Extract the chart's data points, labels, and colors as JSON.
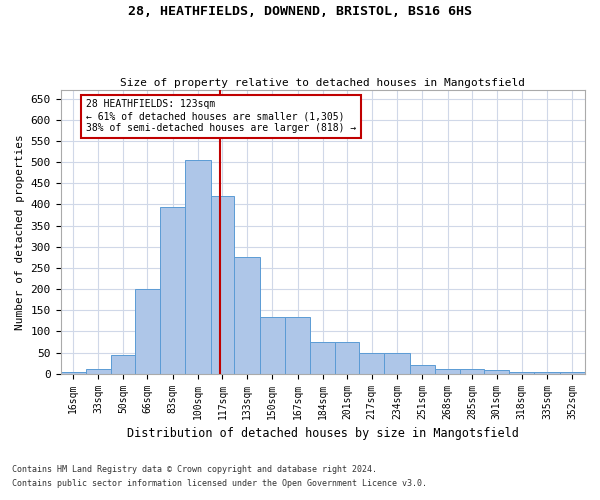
{
  "title1": "28, HEATHFIELDS, DOWNEND, BRISTOL, BS16 6HS",
  "title2": "Size of property relative to detached houses in Mangotsfield",
  "xlabel": "Distribution of detached houses by size in Mangotsfield",
  "ylabel": "Number of detached properties",
  "footnote1": "Contains HM Land Registry data © Crown copyright and database right 2024.",
  "footnote2": "Contains public sector information licensed under the Open Government Licence v3.0.",
  "bar_labels": [
    "16sqm",
    "33sqm",
    "50sqm",
    "66sqm",
    "83sqm",
    "100sqm",
    "117sqm",
    "133sqm",
    "150sqm",
    "167sqm",
    "184sqm",
    "201sqm",
    "217sqm",
    "234sqm",
    "251sqm",
    "268sqm",
    "285sqm",
    "301sqm",
    "318sqm",
    "335sqm",
    "352sqm"
  ],
  "bar_heights": [
    5,
    10,
    45,
    200,
    395,
    505,
    420,
    275,
    135,
    135,
    75,
    75,
    50,
    50,
    20,
    10,
    10,
    8,
    5,
    5,
    5
  ],
  "bar_color": "#aec6e8",
  "bar_edgecolor": "#5b9bd5",
  "vline_x": 123,
  "vline_color": "#c00000",
  "annotation_text": "28 HEATHFIELDS: 123sqm\n← 61% of detached houses are smaller (1,305)\n38% of semi-detached houses are larger (818) →",
  "annotation_box_color": "#ffffff",
  "annotation_box_edgecolor": "#c00000",
  "ylim": [
    0,
    670
  ],
  "yticks": [
    0,
    50,
    100,
    150,
    200,
    250,
    300,
    350,
    400,
    450,
    500,
    550,
    600,
    650
  ],
  "background_color": "#ffffff",
  "grid_color": "#d0d8e8",
  "bin_edges": [
    16,
    33,
    50,
    66,
    83,
    100,
    117,
    133,
    150,
    167,
    184,
    201,
    217,
    234,
    251,
    268,
    285,
    301,
    318,
    335,
    352,
    369
  ]
}
